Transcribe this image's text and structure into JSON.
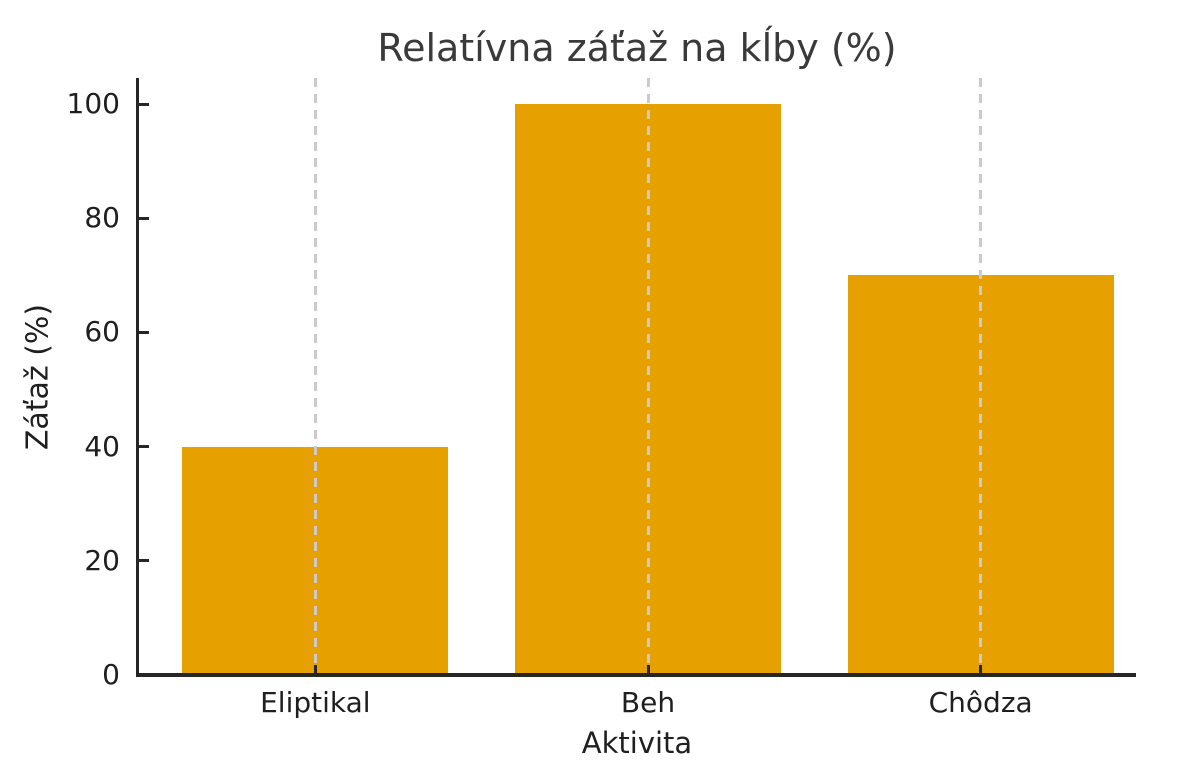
{
  "chart_data": {
    "type": "bar",
    "title": "Relatívna záťaž na kĺby (%)",
    "xlabel": "Aktivita",
    "ylabel": "Záťaž (%)",
    "categories": [
      "Eliptikal",
      "Beh",
      "Chôdza"
    ],
    "values": [
      40,
      100,
      70
    ],
    "ylim": [
      0,
      100
    ],
    "yticks": [
      0,
      20,
      40,
      60,
      80,
      100
    ],
    "bar_color": "#e6a000",
    "gridline_color": "#cbcbcb",
    "axis_color": "#262626",
    "title_color": "#3a3a3a",
    "tick_label_color": "#1f1f1f",
    "background_color": "#ffffff",
    "grid": "vertical dashed lines at category centers, drawn over bars",
    "legend": "none"
  }
}
